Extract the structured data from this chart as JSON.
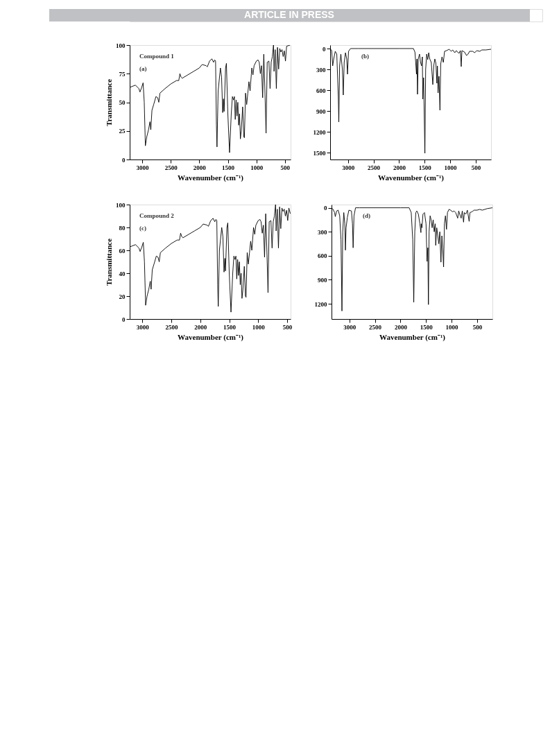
{
  "chart_data": [
    {
      "type": "line",
      "xlabel": "Wavenumber (cm⁻¹)",
      "ylabel": "Transmittance",
      "annotations": [
        "ARTICLE IN PRESS",
        "Compound 1",
        "(a)"
      ],
      "xlim": [
        3220,
        400
      ],
      "xticks": [
        3000,
        2500,
        2000,
        1500,
        1000,
        500
      ],
      "ylim": [
        0,
        100
      ],
      "yticks": [
        0,
        25,
        50,
        75,
        100
      ],
      "grid": false,
      "series": [
        {
          "color": "#000000",
          "x": [
            3220,
            3120,
            3060,
            3040,
            3010,
            2985,
            2965,
            2945,
            2920,
            2890,
            2865,
            2850,
            2830,
            2800,
            2760,
            2730,
            2710,
            2690,
            2600,
            2500,
            2400,
            2360,
            2340,
            2320,
            2300,
            2200,
            2100,
            2000,
            1950,
            1880,
            1860,
            1820,
            1780,
            1750,
            1730,
            1715,
            1700,
            1690,
            1670,
            1630,
            1610,
            1590,
            1575,
            1565,
            1540,
            1525,
            1500,
            1470,
            1440,
            1420,
            1400,
            1385,
            1370,
            1355,
            1340,
            1325,
            1310,
            1295,
            1280,
            1265,
            1240,
            1220,
            1210,
            1190,
            1170,
            1150,
            1130,
            1110,
            1080,
            1060,
            1040,
            1000,
            970,
            950,
            930,
            910,
            890,
            870,
            850,
            830,
            810,
            780,
            760,
            740,
            720,
            700,
            690,
            670,
            650,
            630,
            610,
            590,
            570,
            550,
            530,
            510,
            490,
            470,
            410
          ],
          "values": [
            63,
            65,
            62,
            59,
            63,
            67,
            50,
            12,
            20,
            26,
            33,
            26,
            43,
            48,
            55,
            54,
            50,
            58,
            62,
            66,
            69,
            69,
            75,
            72,
            71,
            74,
            77,
            80,
            83,
            82,
            81,
            86,
            88,
            85,
            87,
            86,
            30,
            11,
            60,
            80,
            72,
            41,
            53,
            42,
            80,
            84,
            40,
            6,
            40,
            55,
            52,
            55,
            35,
            52,
            38,
            50,
            30,
            40,
            18,
            25,
            46,
            20,
            19,
            58,
            48,
            58,
            68,
            60,
            80,
            74,
            82,
            86,
            87,
            85,
            75,
            82,
            54,
            92,
            60,
            23,
            85,
            86,
            62,
            85,
            90,
            100,
            77,
            96,
            62,
            98,
            79,
            97,
            94,
            96,
            90,
            95,
            86,
            99,
            100
          ]
        }
      ]
    },
    {
      "type": "line",
      "xlabel": "Wavenumber (cm⁻¹)",
      "annotations": [
        "(b)"
      ],
      "xlim": [
        3350,
        200
      ],
      "xticks": [
        3000,
        2500,
        2000,
        1500,
        1000,
        500
      ],
      "ylim": [
        1600,
        -50
      ],
      "yticks": [
        0,
        300,
        600,
        900,
        1200,
        1500
      ],
      "grid": false,
      "series": [
        {
          "color": "#000000",
          "x": [
            3350,
            3320,
            3300,
            3280,
            3250,
            3220,
            3190,
            3180,
            3165,
            3140,
            3110,
            3093,
            3075,
            3050,
            3025,
            3010,
            2990,
            2950,
            2800,
            2000,
            1720,
            1690,
            1675,
            1660,
            1650,
            1640,
            1625,
            1600,
            1580,
            1560,
            1545,
            1536,
            1520,
            1495,
            1480,
            1460,
            1440,
            1420,
            1400,
            1370,
            1340,
            1320,
            1300,
            1280,
            1260,
            1250,
            1237,
            1220,
            1200,
            1185,
            1160,
            1134,
            1110,
            1070,
            1020,
            980,
            950,
            910,
            880,
            830,
            800,
            784,
            770,
            720,
            680,
            650,
            620,
            560,
            520,
            480,
            420,
            380,
            300,
            200
          ],
          "values": [
            0,
            30,
            250,
            150,
            40,
            80,
            700,
            1060,
            250,
            80,
            300,
            670,
            200,
            60,
            150,
            370,
            40,
            0,
            0,
            0,
            0,
            50,
            200,
            370,
            150,
            660,
            150,
            80,
            200,
            250,
            120,
            730,
            420,
            1510,
            300,
            80,
            160,
            60,
            150,
            200,
            520,
            240,
            150,
            210,
            500,
            250,
            640,
            400,
            890,
            220,
            120,
            200,
            40,
            30,
            10,
            40,
            20,
            60,
            30,
            70,
            30,
            260,
            30,
            50,
            100,
            80,
            40,
            40,
            60,
            30,
            40,
            20,
            20,
            10
          ]
        }
      ]
    },
    {
      "type": "line",
      "xlabel": "Wavenumber (cm⁻¹)",
      "ylabel": "Transmittance",
      "annotations": [
        "Compound 2",
        "(c)"
      ],
      "xlim": [
        3220,
        440
      ],
      "xticks": [
        3000,
        2500,
        2000,
        1500,
        1000,
        500
      ],
      "ylim": [
        0,
        100
      ],
      "yticks": [
        0,
        20,
        40,
        60,
        80,
        100
      ],
      "grid": false,
      "series": [
        {
          "color": "#000000",
          "x": [
            3220,
            3120,
            3060,
            3040,
            3010,
            2985,
            2965,
            2945,
            2920,
            2890,
            2865,
            2850,
            2830,
            2800,
            2760,
            2730,
            2710,
            2690,
            2600,
            2500,
            2400,
            2360,
            2340,
            2320,
            2300,
            2200,
            2100,
            2000,
            1950,
            1880,
            1860,
            1820,
            1780,
            1750,
            1730,
            1715,
            1700,
            1690,
            1670,
            1630,
            1610,
            1590,
            1575,
            1565,
            1540,
            1525,
            1500,
            1470,
            1440,
            1420,
            1400,
            1385,
            1370,
            1355,
            1340,
            1325,
            1310,
            1295,
            1280,
            1265,
            1240,
            1220,
            1210,
            1190,
            1170,
            1150,
            1130,
            1110,
            1080,
            1060,
            1040,
            1000,
            970,
            950,
            930,
            910,
            890,
            870,
            850,
            830,
            810,
            780,
            760,
            740,
            720,
            700,
            690,
            670,
            650,
            630,
            610,
            590,
            570,
            550,
            530,
            510,
            490,
            470,
            445
          ],
          "values": [
            63,
            65,
            62,
            59,
            63,
            67,
            50,
            12,
            20,
            26,
            33,
            26,
            43,
            48,
            55,
            54,
            50,
            58,
            62,
            66,
            69,
            69,
            75,
            72,
            71,
            74,
            77,
            80,
            83,
            82,
            81,
            86,
            88,
            85,
            87,
            86,
            30,
            11,
            60,
            80,
            72,
            41,
            53,
            42,
            80,
            84,
            40,
            6,
            40,
            55,
            52,
            55,
            35,
            52,
            38,
            50,
            30,
            40,
            18,
            25,
            46,
            20,
            19,
            58,
            48,
            58,
            68,
            60,
            80,
            74,
            82,
            86,
            87,
            85,
            75,
            82,
            54,
            92,
            60,
            23,
            85,
            86,
            62,
            85,
            90,
            100,
            77,
            96,
            62,
            98,
            79,
            97,
            94,
            96,
            90,
            95,
            86,
            97,
            92
          ]
        }
      ]
    },
    {
      "type": "line",
      "xlabel": "Wavenumber (cm⁻¹)",
      "annotations": [
        "(d)"
      ],
      "xlim": [
        3350,
        200
      ],
      "xticks": [
        3000,
        2500,
        2000,
        1500,
        1000,
        500
      ],
      "ylim": [
        1390,
        -40
      ],
      "yticks": [
        0,
        300,
        600,
        900,
        1200
      ],
      "grid": false,
      "series": [
        {
          "color": "#000000",
          "x": [
            3350,
            3320,
            3290,
            3276,
            3250,
            3220,
            3190,
            3165,
            3146,
            3130,
            3110,
            3090,
            3078,
            3065,
            3040,
            3010,
            2960,
            2940,
            2927,
            2910,
            2880,
            2800,
            2000,
            1830,
            1790,
            1760,
            1740,
            1720,
            1700,
            1680,
            1650,
            1620,
            1600,
            1594,
            1580,
            1560,
            1530,
            1500,
            1480,
            1465,
            1453,
            1440,
            1420,
            1400,
            1380,
            1360,
            1340,
            1320,
            1310,
            1290,
            1270,
            1250,
            1230,
            1208,
            1190,
            1175,
            1156,
            1140,
            1120,
            1099,
            1080,
            1050,
            1020,
            980,
            950,
            920,
            880,
            860,
            830,
            812,
            790,
            765,
            750,
            720,
            690,
            656,
            640,
            600,
            560,
            500,
            450,
            400,
            300,
            200
          ],
          "values": [
            0,
            20,
            60,
            110,
            40,
            30,
            100,
            400,
            1290,
            300,
            60,
            200,
            530,
            250,
            120,
            30,
            40,
            200,
            500,
            100,
            0,
            0,
            0,
            0,
            60,
            400,
            1180,
            300,
            60,
            40,
            80,
            200,
            310,
            200,
            250,
            80,
            60,
            200,
            670,
            500,
            1210,
            300,
            100,
            150,
            250,
            150,
            300,
            200,
            470,
            250,
            350,
            450,
            300,
            680,
            350,
            500,
            740,
            200,
            100,
            270,
            60,
            20,
            30,
            50,
            40,
            60,
            130,
            40,
            100,
            130,
            40,
            180,
            60,
            80,
            30,
            170,
            60,
            50,
            30,
            30,
            20,
            30,
            10,
            0
          ]
        }
      ]
    }
  ]
}
